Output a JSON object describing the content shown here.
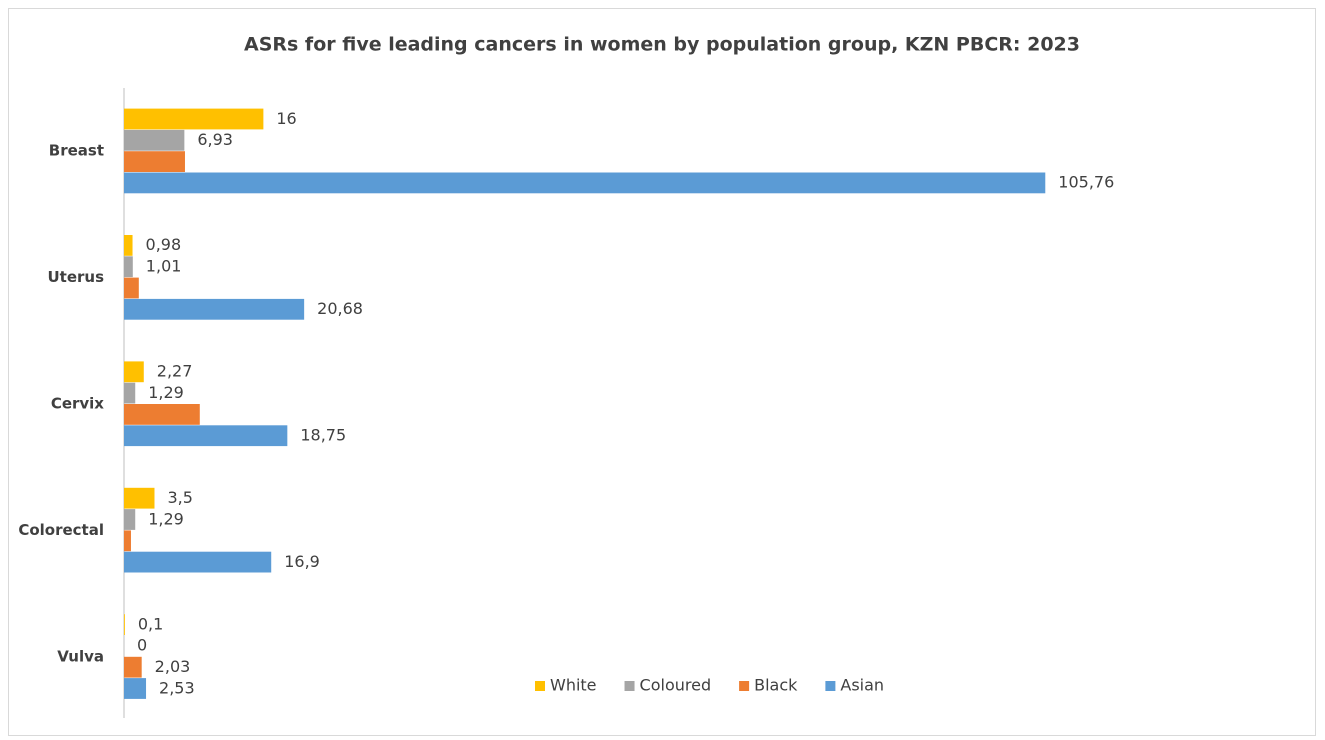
{
  "chart_data": {
    "type": "hbar",
    "title": "ASRs for five leading cancers in women by population group, KZN PBCR: 2023",
    "categories": [
      "Breast",
      "Uterus",
      "Cervix",
      "Colorectal",
      "Vulva"
    ],
    "series": [
      {
        "name": "White",
        "color": "#FFC000",
        "values": [
          16,
          0.98,
          2.27,
          3.5,
          0.1
        ],
        "value_labels": [
          "16",
          "0,98",
          "2,27",
          "3,5",
          "0,1"
        ]
      },
      {
        "name": "Coloured",
        "color": "#A5A5A5",
        "values": [
          6.93,
          1.01,
          1.29,
          1.29,
          0
        ],
        "value_labels": [
          "6,93",
          "1,01",
          "1,29",
          "1,29",
          "0"
        ]
      },
      {
        "name": "Black",
        "color": "#ED7D31",
        "values": [
          7.0,
          1.7,
          8.7,
          0.8,
          2.03
        ],
        "value_labels": [
          null,
          null,
          null,
          null,
          "2,03"
        ]
      },
      {
        "name": "Asian",
        "color": "#5B9BD5",
        "values": [
          105.76,
          20.68,
          18.75,
          16.9,
          2.53
        ],
        "value_labels": [
          "105,76",
          "20,68",
          "18,75",
          "16,9",
          "2,53"
        ]
      }
    ],
    "xlim": [
      0,
      135
    ],
    "legend": "bottom"
  }
}
